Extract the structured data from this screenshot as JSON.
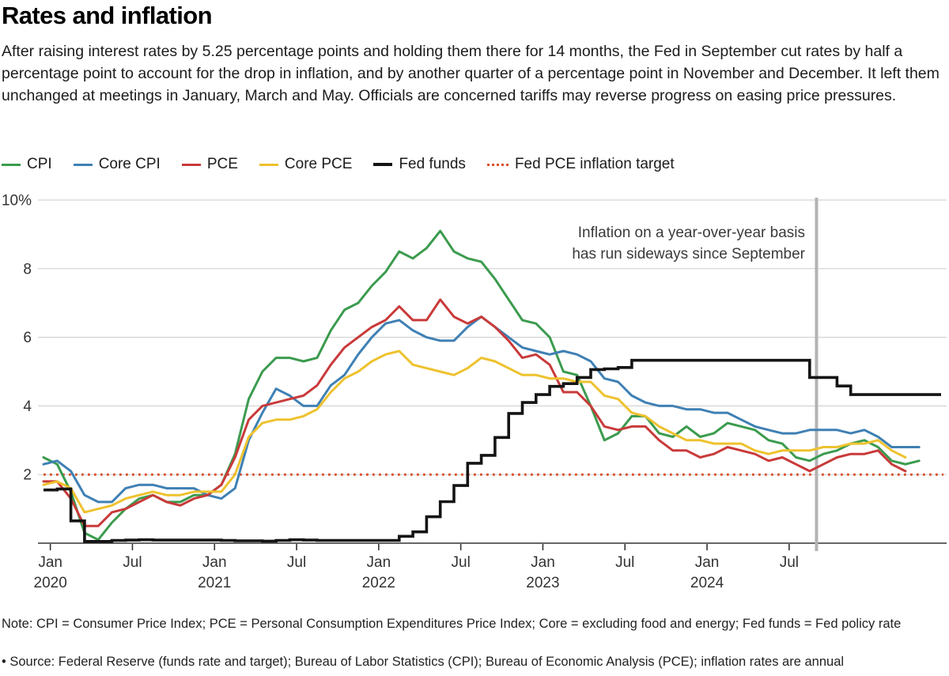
{
  "header": {
    "title": "Rates and inflation",
    "subtitle": "After raising interest rates by 5.25 percentage points and holding them there for 14 months, the Fed in September cut rates by half a percentage point to account for the drop in inflation, and by another quarter of a percentage point in November and December. It left them unchanged at meetings in January, March and May. Officials are concerned tariffs may reverse progress on easing price pressures."
  },
  "legend": {
    "items": [
      {
        "label": "CPI",
        "color": "#3b9b4e",
        "style": "solid",
        "thickness": 3
      },
      {
        "label": "Core CPI",
        "color": "#3f80b4",
        "style": "solid",
        "thickness": 3
      },
      {
        "label": "PCE",
        "color": "#c93a3a",
        "style": "solid",
        "thickness": 3
      },
      {
        "label": "Core PCE",
        "color": "#eec22e",
        "style": "solid",
        "thickness": 3
      },
      {
        "label": "Fed funds",
        "color": "#141414",
        "style": "solid",
        "thickness": 4
      },
      {
        "label": "Fed PCE inflation target",
        "color": "#dc512c",
        "style": "dotted",
        "thickness": 3
      }
    ]
  },
  "annotation": {
    "line1": "Inflation on a year-over-year basis",
    "line2": "has run sideways since September"
  },
  "notes": {
    "note1": "Note: CPI = Consumer Price Index; PCE = Personal Consumption Expenditures Price Index; Core = excluding food and energy; Fed funds = Fed policy rate",
    "note2": "• Source: Federal Reserve (funds rate and target); Bureau of Labor Statistics (CPI); Bureau of Economic Analysis (PCE); inflation rates are annual"
  },
  "chart_data": {
    "type": "line",
    "title": "Rates and inflation",
    "x_unit": "months since Jan 2020",
    "x_start": "2020-01",
    "x_ticks": [
      {
        "label": "Jan",
        "year": "2020",
        "m": 0
      },
      {
        "label": "Jul",
        "year": "",
        "m": 6
      },
      {
        "label": "Jan",
        "year": "2021",
        "m": 12
      },
      {
        "label": "Jul",
        "year": "",
        "m": 18
      },
      {
        "label": "Jan",
        "year": "2022",
        "m": 24
      },
      {
        "label": "Jul",
        "year": "",
        "m": 30
      },
      {
        "label": "Jan",
        "year": "2023",
        "m": 36
      },
      {
        "label": "Jul",
        "year": "",
        "m": 42
      },
      {
        "label": "Jan",
        "year": "2024",
        "m": 48
      },
      {
        "label": "Jul",
        "year": "",
        "m": 54
      }
    ],
    "y_ticks": [
      {
        "v": 2,
        "label": "2"
      },
      {
        "v": 4,
        "label": "4"
      },
      {
        "v": 6,
        "label": "6"
      },
      {
        "v": 8,
        "label": "8"
      },
      {
        "v": 10,
        "label": "10%"
      }
    ],
    "ylim": [
      0,
      10.3
    ],
    "grid": true,
    "legend_position": "top",
    "target_line": {
      "label": "Fed PCE inflation target",
      "value": 2,
      "color": "#dc512c"
    },
    "marker_line": {
      "date": "2024-09",
      "m": 56.5,
      "color": "#b3b3b3"
    },
    "series": [
      {
        "name": "CPI",
        "color": "#3b9b4e",
        "draw": "line",
        "values": [
          2.5,
          2.3,
          1.5,
          0.3,
          0.1,
          0.6,
          1.0,
          1.3,
          1.4,
          1.2,
          1.2,
          1.4,
          1.4,
          1.7,
          2.6,
          4.2,
          5.0,
          5.4,
          5.4,
          5.3,
          5.4,
          6.2,
          6.8,
          7.0,
          7.5,
          7.9,
          8.5,
          8.3,
          8.6,
          9.1,
          8.5,
          8.3,
          8.2,
          7.7,
          7.1,
          6.5,
          6.4,
          6.0,
          5.0,
          4.9,
          4.0,
          3.0,
          3.2,
          3.7,
          3.7,
          3.2,
          3.1,
          3.4,
          3.1,
          3.2,
          3.5,
          3.4,
          3.3,
          3.0,
          2.9,
          2.5,
          2.4,
          2.6,
          2.7,
          2.9,
          3.0,
          2.8,
          2.4,
          2.3,
          2.4
        ]
      },
      {
        "name": "Core CPI",
        "color": "#3f80b4",
        "draw": "line",
        "values": [
          2.3,
          2.4,
          2.1,
          1.4,
          1.2,
          1.2,
          1.6,
          1.7,
          1.7,
          1.6,
          1.6,
          1.6,
          1.4,
          1.3,
          1.6,
          3.0,
          3.8,
          4.5,
          4.3,
          4.0,
          4.0,
          4.6,
          4.9,
          5.5,
          6.0,
          6.4,
          6.5,
          6.2,
          6.0,
          5.9,
          5.9,
          6.3,
          6.6,
          6.3,
          6.0,
          5.7,
          5.6,
          5.5,
          5.6,
          5.5,
          5.3,
          4.8,
          4.7,
          4.3,
          4.1,
          4.0,
          4.0,
          3.9,
          3.9,
          3.8,
          3.8,
          3.6,
          3.4,
          3.3,
          3.2,
          3.2,
          3.3,
          3.3,
          3.3,
          3.2,
          3.3,
          3.1,
          2.8,
          2.8,
          2.8
        ]
      },
      {
        "name": "PCE",
        "color": "#c93a3a",
        "draw": "line",
        "values": [
          1.8,
          1.8,
          1.3,
          0.5,
          0.5,
          0.9,
          1.0,
          1.2,
          1.4,
          1.2,
          1.1,
          1.3,
          1.4,
          1.7,
          2.5,
          3.6,
          4.0,
          4.1,
          4.2,
          4.3,
          4.6,
          5.2,
          5.7,
          6.0,
          6.3,
          6.5,
          6.9,
          6.5,
          6.5,
          7.1,
          6.6,
          6.4,
          6.6,
          6.3,
          5.9,
          5.4,
          5.5,
          5.2,
          4.4,
          4.4,
          4.0,
          3.4,
          3.3,
          3.4,
          3.4,
          3.0,
          2.7,
          2.7,
          2.5,
          2.6,
          2.8,
          2.7,
          2.6,
          2.4,
          2.5,
          2.3,
          2.1,
          2.3,
          2.5,
          2.6,
          2.6,
          2.7,
          2.3,
          2.1
        ]
      },
      {
        "name": "Core PCE",
        "color": "#eec22e",
        "draw": "line",
        "values": [
          1.7,
          1.8,
          1.6,
          0.9,
          1.0,
          1.1,
          1.3,
          1.4,
          1.5,
          1.4,
          1.4,
          1.5,
          1.5,
          1.5,
          2.0,
          3.1,
          3.5,
          3.6,
          3.6,
          3.7,
          3.9,
          4.4,
          4.8,
          5.0,
          5.3,
          5.5,
          5.6,
          5.2,
          5.1,
          5.0,
          4.9,
          5.1,
          5.4,
          5.3,
          5.1,
          4.9,
          4.9,
          4.8,
          4.8,
          4.7,
          4.7,
          4.3,
          4.2,
          3.8,
          3.7,
          3.4,
          3.2,
          3.0,
          3.0,
          2.9,
          2.9,
          2.9,
          2.7,
          2.6,
          2.7,
          2.7,
          2.7,
          2.8,
          2.8,
          2.9,
          2.9,
          3.0,
          2.7,
          2.5
        ]
      },
      {
        "name": "Fed funds",
        "color": "#141414",
        "draw": "step",
        "values": [
          1.55,
          1.58,
          0.65,
          0.05,
          0.05,
          0.08,
          0.09,
          0.1,
          0.09,
          0.09,
          0.09,
          0.09,
          0.09,
          0.08,
          0.07,
          0.07,
          0.06,
          0.08,
          0.1,
          0.09,
          0.08,
          0.08,
          0.08,
          0.08,
          0.08,
          0.08,
          0.2,
          0.33,
          0.77,
          1.21,
          1.68,
          2.33,
          2.56,
          3.08,
          3.78,
          4.1,
          4.33,
          4.57,
          4.65,
          4.83,
          5.06,
          5.08,
          5.12,
          5.33,
          5.33,
          5.33,
          5.33,
          5.33,
          5.33,
          5.33,
          5.33,
          5.33,
          5.33,
          5.33,
          5.33,
          5.33,
          4.83,
          4.83,
          4.58,
          4.33,
          4.33,
          4.33,
          4.33,
          4.33,
          4.33,
          4.33
        ]
      }
    ]
  }
}
